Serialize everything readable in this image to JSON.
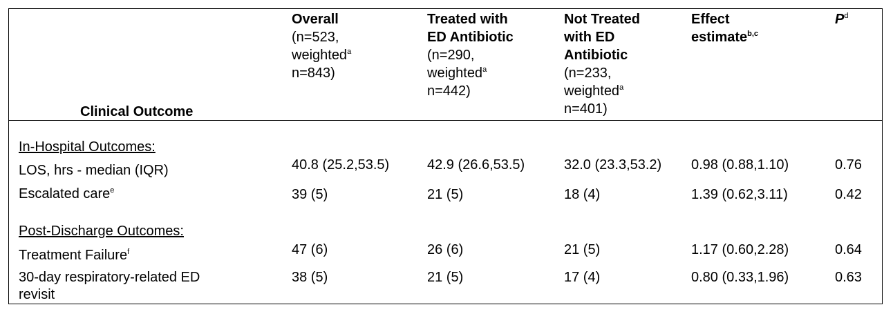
{
  "header": {
    "clinical_outcome": "Clinical Outcome",
    "overall": {
      "title": "Overall",
      "n": "(n=523,",
      "weighted": "weighted",
      "sup": "a",
      "wn": "n=843)"
    },
    "treated": {
      "title1": "Treated with",
      "title2": "ED Antibiotic",
      "n": "(n=290,",
      "weighted": "weighted",
      "sup": "a",
      "wn": "n=442)"
    },
    "not_treated": {
      "title1": "Not Treated",
      "title2": "with ED",
      "title3": "Antibiotic",
      "n": "(n=233,",
      "weighted": "weighted",
      "sup": "a",
      "wn": "n=401)"
    },
    "effect": {
      "title1": "Effect",
      "title2": "estimate",
      "sup": "b,c"
    },
    "p": {
      "title": "P",
      "sup": "d"
    }
  },
  "sections": {
    "in_hospital": "In-Hospital Outcomes:",
    "post_discharge": "Post-Discharge Outcomes:"
  },
  "rows": {
    "los": {
      "label": "LOS, hrs - median (IQR)",
      "overall": "40.8 (25.2,53.5)",
      "treated": "42.9 (26.6,53.5)",
      "not_treated": "32.0 (23.3,53.2)",
      "effect": "0.98 (0.88,1.10)",
      "p": "0.76"
    },
    "escalated": {
      "label": "Escalated care",
      "sup": "e",
      "overall": "39 (5)",
      "treated": "21 (5)",
      "not_treated": "18 (4)",
      "effect": "1.39 (0.62,3.11)",
      "p": "0.42"
    },
    "failure": {
      "label": "Treatment Failure",
      "sup": "f",
      "overall": "47 (6)",
      "treated": "26 (6)",
      "not_treated": "21 (5)",
      "effect": "1.17 (0.60,2.28)",
      "p": "0.64"
    },
    "revisit": {
      "label1": "30-day respiratory-related ED",
      "label2": "revisit",
      "overall": "38 (5)",
      "treated": "21 (5)",
      "not_treated": "17 (4)",
      "effect": "0.80 (0.33,1.96)",
      "p": "0.63"
    }
  }
}
